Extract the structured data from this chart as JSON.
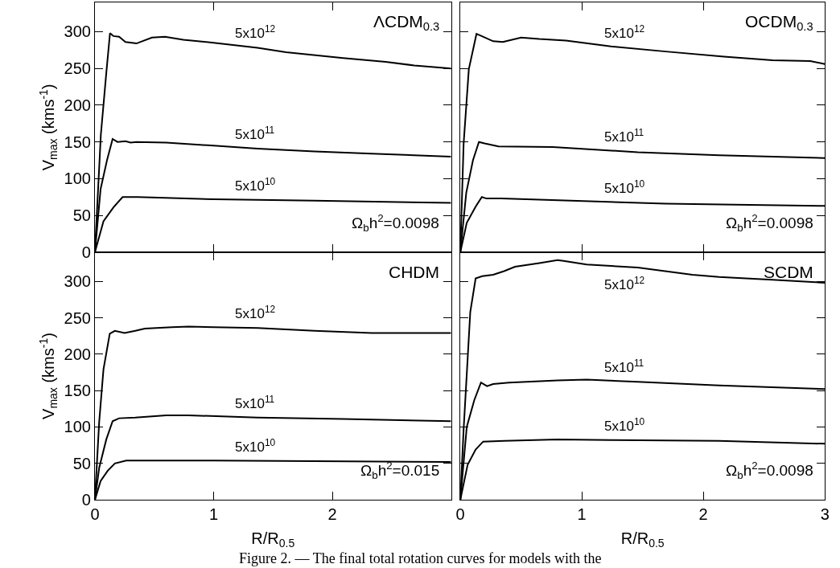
{
  "chart_data": [
    {
      "type": "line",
      "ylabel": "V$_{max}$ (kms$^{-1}$)",
      "xlim": [
        0,
        3
      ],
      "ylim": [
        0,
        340
      ],
      "xticks": [
        0,
        1,
        2,
        {
          "value": 3,
          "label": null
        }
      ],
      "yticks": [
        0,
        50,
        100,
        150,
        200,
        250,
        300
      ],
      "tick_labels": "y",
      "legend": false,
      "annotations": [
        "ΛCDM$_{0.3}$",
        "Ω$_{b}$h$^{2}$=0.0098"
      ],
      "series": [
        {
          "name": "5x10$^{12}$",
          "color": "#000000",
          "x": [
            0,
            0.05,
            0.096,
            0.127,
            0.156,
            0.204,
            0.257,
            0.35,
            0.48,
            0.59,
            0.745,
            1.0,
            1.37,
            1.61,
            2.09,
            2.45,
            2.69,
            3.0
          ],
          "values": [
            0,
            160,
            244,
            298,
            294,
            293,
            286,
            284,
            292,
            293,
            289,
            285,
            278,
            272,
            264,
            259,
            254,
            250
          ]
        },
        {
          "name": "5x10$^{11}$",
          "color": "#000000",
          "x": [
            0,
            0.048,
            0.103,
            0.149,
            0.19,
            0.257,
            0.3,
            0.35,
            0.6,
            1.0,
            1.37,
            1.85,
            2.33,
            3.0
          ],
          "values": [
            0,
            86,
            126,
            154,
            150,
            151,
            149,
            150,
            149,
            145,
            141,
            137,
            134,
            130
          ]
        },
        {
          "name": "5x10$^{10}$",
          "color": "#000000",
          "x": [
            0,
            0.072,
            0.156,
            0.233,
            0.36,
            1.0,
            1.85,
            3.0
          ],
          "values": [
            0,
            42,
            61,
            75,
            75,
            72,
            70,
            67
          ]
        }
      ]
    },
    {
      "type": "line",
      "xlim": [
        0,
        3
      ],
      "ylim": [
        0,
        340
      ],
      "xticks": [
        {
          "value": 0,
          "label": null
        },
        {
          "value": 1,
          "label": null
        },
        {
          "value": 2,
          "label": null
        },
        {
          "value": 3,
          "label": null
        }
      ],
      "yticks": [
        {
          "value": 0,
          "label": null
        },
        {
          "value": 50,
          "label": null
        },
        {
          "value": 100,
          "label": null
        },
        {
          "value": 150,
          "label": null
        },
        {
          "value": 200,
          "label": null
        },
        {
          "value": 250,
          "label": null
        },
        {
          "value": 300,
          "label": null
        }
      ],
      "tick_labels": false,
      "legend": false,
      "annotations": [
        "OCDM$_{0.3}$",
        "Ω$_{b}$h$^{2}$=0.0098"
      ],
      "series": [
        {
          "name": "5x10$^{12}$",
          "color": "#000000",
          "x": [
            0,
            0.027,
            0.07,
            0.133,
            0.19,
            0.27,
            0.35,
            0.5,
            0.65,
            0.87,
            1.24,
            1.69,
            2.17,
            2.57,
            2.88,
            3.0
          ],
          "values": [
            0,
            147,
            249,
            297,
            293,
            287,
            286,
            292,
            290,
            288,
            280,
            273,
            266,
            261,
            260,
            256
          ]
        },
        {
          "name": "5x10$^{11}$",
          "color": "#000000",
          "x": [
            0,
            0.049,
            0.104,
            0.153,
            0.2,
            0.314,
            0.76,
            1.46,
            2.13,
            3.0
          ],
          "values": [
            0,
            81,
            125,
            150,
            148,
            144,
            143,
            136,
            132,
            128
          ]
        },
        {
          "name": "5x10$^{10}$",
          "color": "#000000",
          "x": [
            0,
            0.053,
            0.126,
            0.177,
            0.215,
            0.336,
            0.91,
            1.69,
            3.0
          ],
          "values": [
            0,
            40,
            62,
            75,
            73,
            73,
            70,
            66,
            63
          ]
        }
      ]
    },
    {
      "type": "line",
      "ylabel": "V$_{max}$ (kms$^{-1}$)",
      "xlabel": "R/R$_{0.5}$",
      "xlim": [
        0,
        3
      ],
      "ylim": [
        0,
        340
      ],
      "xticks": [
        0,
        1,
        2,
        {
          "value": 3,
          "label": null
        }
      ],
      "yticks": [
        0,
        50,
        100,
        150,
        200,
        250,
        300
      ],
      "legend": false,
      "annotations": [
        "CHDM",
        "Ω$_{b}$h$^{2}$=0.015"
      ],
      "series": [
        {
          "name": "5x10$^{12}$",
          "color": "#000000",
          "x": [
            0,
            0.036,
            0.072,
            0.125,
            0.168,
            0.25,
            0.34,
            0.42,
            0.65,
            0.79,
            1.0,
            1.37,
            1.85,
            2.33,
            3.0
          ],
          "values": [
            0,
            107,
            179,
            228,
            232,
            229,
            232,
            235,
            237,
            238,
            237,
            236,
            232,
            229,
            229
          ]
        },
        {
          "name": "5x10$^{11}$",
          "color": "#000000",
          "x": [
            0,
            0.036,
            0.096,
            0.149,
            0.204,
            0.34,
            0.6,
            0.79,
            1.37,
            2.09,
            3.0
          ],
          "values": [
            0,
            44,
            83,
            108,
            112,
            113,
            116,
            116,
            113,
            111,
            108
          ]
        },
        {
          "name": "5x10$^{10}$",
          "color": "#000000",
          "x": [
            0,
            0.048,
            0.108,
            0.168,
            0.264,
            0.553,
            1.0,
            1.85,
            3.0
          ],
          "values": [
            0,
            26,
            40,
            50,
            54,
            54,
            54,
            53,
            52
          ]
        }
      ]
    },
    {
      "type": "line",
      "xlabel": "R/R$_{0.5}$",
      "xlim": [
        0,
        3
      ],
      "ylim": [
        0,
        340
      ],
      "xticks": [
        0,
        1,
        2,
        3
      ],
      "yticks": [
        {
          "value": 0,
          "label": null
        },
        {
          "value": 50,
          "label": null
        },
        {
          "value": 100,
          "label": null
        },
        {
          "value": 150,
          "label": null
        },
        {
          "value": 200,
          "label": null
        },
        {
          "value": 250,
          "label": null
        },
        {
          "value": 300,
          "label": null
        }
      ],
      "tick_labels": "x",
      "legend": false,
      "annotations": [
        "SCDM",
        "Ω$_{b}$h$^{2}$=0.0098",
        "Figure 2. — The final total rotation curves for models with the"
      ],
      "series": [
        {
          "name": "5x10$^{12}$",
          "color": "#000000",
          "x": [
            0,
            0.027,
            0.082,
            0.126,
            0.18,
            0.27,
            0.36,
            0.45,
            0.65,
            0.8,
            0.85,
            1.04,
            1.46,
            1.91,
            2.13,
            2.57,
            3.0
          ],
          "values": [
            0,
            96,
            258,
            304,
            307,
            309,
            314,
            320,
            325,
            329,
            328,
            323,
            319,
            309,
            306,
            302,
            298
          ]
        },
        {
          "name": "5x10$^{11}$",
          "color": "#000000",
          "x": [
            0,
            0.053,
            0.115,
            0.17,
            0.22,
            0.27,
            0.4,
            0.8,
            1.04,
            1.46,
            2.13,
            3.0
          ],
          "values": [
            0,
            100,
            137,
            161,
            156,
            159,
            161,
            164,
            165,
            162,
            157,
            152
          ]
        },
        {
          "name": "5x10$^{10}$",
          "color": "#000000",
          "x": [
            0,
            0.06,
            0.126,
            0.188,
            0.36,
            0.8,
            1.24,
            2.13,
            3.0
          ],
          "values": [
            0,
            48,
            69,
            80,
            81,
            83,
            82,
            81,
            77
          ]
        }
      ]
    }
  ]
}
